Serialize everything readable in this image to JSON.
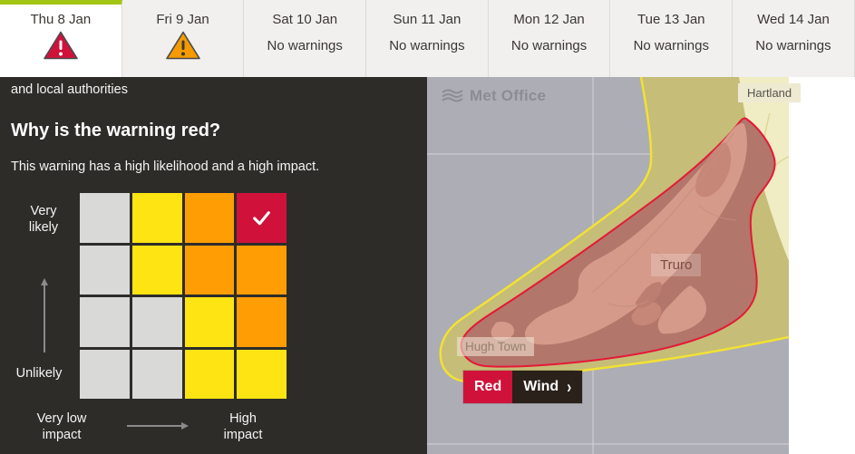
{
  "tabbar": {
    "tabs": [
      {
        "label": "Thu 8 Jan",
        "warning": "red",
        "active": true
      },
      {
        "label": "Fri 9 Jan",
        "warning": "amber",
        "active": false
      },
      {
        "label": "Sat 10 Jan",
        "status": "No warnings",
        "active": false
      },
      {
        "label": "Sun 11 Jan",
        "status": "No warnings",
        "active": false
      },
      {
        "label": "Mon 12 Jan",
        "status": "No warnings",
        "active": false
      },
      {
        "label": "Tue 13 Jan",
        "status": "No warnings",
        "active": false
      },
      {
        "label": "Wed 14 Jan",
        "status": "No warnings",
        "active": false
      }
    ]
  },
  "panel": {
    "intro_tail": "and local authorities",
    "heading": "Why is the warning red?",
    "description": "This warning has a high likelihood and a high impact.",
    "matrix": {
      "cells": [
        [
          "grey",
          "yellow",
          "orange",
          "red"
        ],
        [
          "grey",
          "yellow",
          "orange",
          "orange"
        ],
        [
          "grey",
          "grey",
          "yellow",
          "orange"
        ],
        [
          "grey",
          "grey",
          "yellow",
          "yellow"
        ]
      ],
      "checked_cell": {
        "row": 0,
        "col": 3
      },
      "likelihood_top_label": "Very\nlikely",
      "likelihood_bottom_label": "Unlikely",
      "impact_left_label": "Very low\nimpact",
      "impact_right_label": "High\nimpact"
    }
  },
  "map": {
    "watermark": "Met Office",
    "place_labels": {
      "hartland": "Hartland",
      "truro": "Truro",
      "hugh_town": "Hugh Town"
    },
    "badge": {
      "level": "Red",
      "type": "Wind",
      "chevron": "›"
    },
    "colors": {
      "sea": "#adadb5",
      "land": "#f0ecc4",
      "yellow_zone_fill": "#c5bd78",
      "yellow_zone_border": "#f2e135",
      "red_zone_fill": "#b3766a",
      "red_zone_border": "#e41937",
      "red_zone_land": "#d59a89",
      "red_zone_land_dark": "#c68678"
    }
  },
  "colors": {
    "red": "#d0123b",
    "amber": "#f59b00",
    "yellow": "#ffe414",
    "orange": "#ff9d05",
    "grey": "#d9d9d8",
    "active_tab_indicator": "#a3c614",
    "panel_bg": "#2d2c29"
  }
}
